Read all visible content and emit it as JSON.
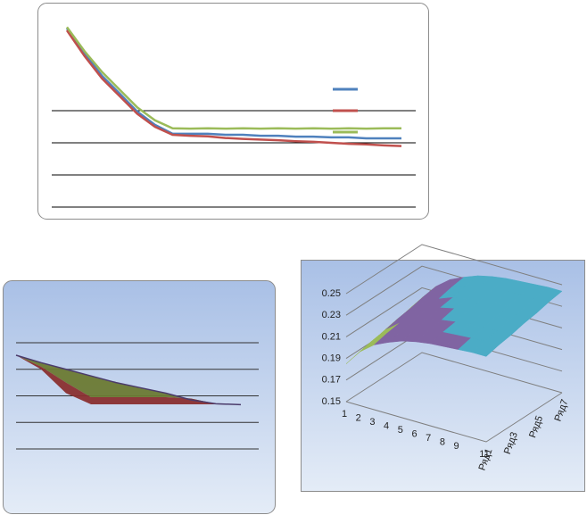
{
  "chart_data": [
    {
      "type": "line",
      "ylim": [
        0,
        6
      ],
      "grid_values": [
        0,
        1,
        2,
        3
      ],
      "grid": true,
      "series": [
        {
          "color": "#4f81bd",
          "values": [
            5.56,
            4.78,
            4.08,
            3.53,
            2.97,
            2.56,
            2.28,
            2.28,
            2.28,
            2.25,
            2.25,
            2.22,
            2.22,
            2.19,
            2.19,
            2.17,
            2.17,
            2.14,
            2.14,
            2.14
          ]
        },
        {
          "color": "#c0504d",
          "values": [
            5.5,
            4.7,
            4.0,
            3.45,
            2.9,
            2.5,
            2.25,
            2.22,
            2.2,
            2.15,
            2.12,
            2.1,
            2.08,
            2.05,
            2.03,
            2.0,
            1.97,
            1.95,
            1.92,
            1.9
          ]
        },
        {
          "color": "#9bbb59",
          "values": [
            5.6,
            4.85,
            4.2,
            3.65,
            3.1,
            2.7,
            2.45,
            2.44,
            2.45,
            2.44,
            2.45,
            2.44,
            2.45,
            2.44,
            2.45,
            2.44,
            2.45,
            2.44,
            2.45,
            2.45
          ]
        }
      ]
    },
    {
      "type": "area3d",
      "ylim": [
        0,
        4
      ],
      "grid_values": [
        0,
        1,
        2,
        3,
        4
      ],
      "grid": true,
      "series": [
        {
          "color": "#4b3b6b",
          "values": [
            3.53,
            3.25,
            3.0,
            2.75,
            2.5,
            2.3,
            2.1,
            1.85,
            1.7,
            1.67
          ]
        },
        {
          "color": "#6b7a33",
          "values": [
            3.53,
            3.1,
            2.5,
            1.95,
            1.95,
            1.95,
            1.95,
            1.9,
            1.7,
            1.67
          ]
        },
        {
          "color": "#8a2f2f",
          "values": [
            3.53,
            3.0,
            2.1,
            1.68,
            1.68,
            1.68,
            1.68,
            1.68,
            1.68,
            1.67
          ]
        }
      ]
    },
    {
      "type": "surface",
      "zlim": [
        0.15,
        0.25
      ],
      "zticks": [
        0.15,
        0.17,
        0.19,
        0.21,
        0.23,
        0.25
      ],
      "band_colors": [
        "#4f81bd",
        "#c0504d",
        "#9bbb59",
        "#8064a2",
        "#4bacc6"
      ],
      "categories": [
        "1",
        "2",
        "3",
        "4",
        "5",
        "6",
        "7",
        "8",
        "9",
        null,
        "11"
      ],
      "series": [
        {
          "name": "Ряд1",
          "values": [
            0.185,
            0.2,
            0.21,
            0.216,
            0.221,
            0.224,
            0.226,
            0.227,
            0.228,
            0.229,
            0.229
          ]
        },
        {
          "values": [
            0.188,
            0.203,
            0.213,
            0.219,
            0.224,
            0.227,
            0.229,
            0.23,
            0.231,
            0.232,
            0.232
          ]
        },
        {
          "name": "Ряд3",
          "values": [
            0.19,
            0.205,
            0.215,
            0.221,
            0.226,
            0.229,
            0.231,
            0.232,
            0.233,
            0.234,
            0.234
          ]
        },
        {
          "values": [
            0.193,
            0.208,
            0.218,
            0.224,
            0.229,
            0.232,
            0.234,
            0.235,
            0.236,
            0.237,
            0.237
          ]
        },
        {
          "name": "Ряд5",
          "values": [
            0.195,
            0.21,
            0.22,
            0.226,
            0.231,
            0.234,
            0.236,
            0.237,
            0.238,
            0.239,
            0.239
          ]
        },
        {
          "values": [
            0.198,
            0.213,
            0.223,
            0.229,
            0.234,
            0.237,
            0.239,
            0.24,
            0.241,
            0.242,
            0.242
          ]
        },
        {
          "name": "Ряд7",
          "values": [
            0.2,
            0.215,
            0.225,
            0.231,
            0.236,
            0.239,
            0.241,
            0.242,
            0.243,
            0.244,
            0.244
          ]
        }
      ]
    }
  ]
}
